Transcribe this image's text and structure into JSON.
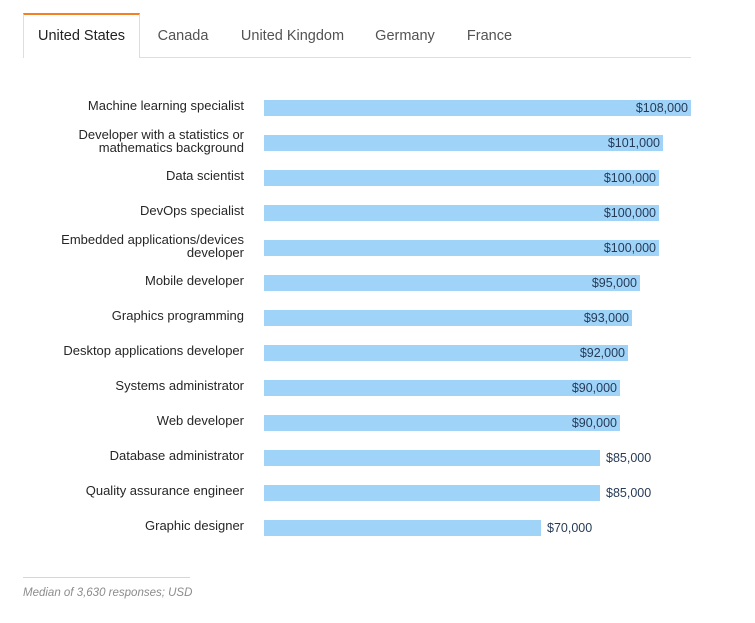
{
  "tabs": [
    {
      "label": "United States",
      "active": true
    },
    {
      "label": "Canada",
      "active": false
    },
    {
      "label": "United Kingdom",
      "active": false
    },
    {
      "label": "Germany",
      "active": false
    },
    {
      "label": "France",
      "active": false
    }
  ],
  "chart_data": {
    "type": "bar",
    "orientation": "horizontal",
    "title": "",
    "xlabel": "",
    "ylabel": "",
    "unit": "USD",
    "xlim": [
      0,
      108000
    ],
    "categories": [
      "Machine learning specialist",
      "Developer with a statistics or mathematics background",
      "Data scientist",
      "DevOps specialist",
      "Embedded applications/devices developer",
      "Mobile developer",
      "Graphics programming",
      "Desktop applications developer",
      "Systems administrator",
      "Web developer",
      "Database administrator",
      "Quality assurance engineer",
      "Graphic designer"
    ],
    "values": [
      108000,
      101000,
      100000,
      100000,
      100000,
      95000,
      93000,
      92000,
      90000,
      90000,
      85000,
      85000,
      70000
    ],
    "data_labels": [
      "$108,000",
      "$101,000",
      "$100,000",
      "$100,000",
      "$100,000",
      "$95,000",
      "$93,000",
      "$92,000",
      "$90,000",
      "$90,000",
      "$85,000",
      "$85,000",
      "$70,000"
    ],
    "bar_color": "#9fd3f8"
  },
  "footnote": "Median of 3,630 responses; USD"
}
